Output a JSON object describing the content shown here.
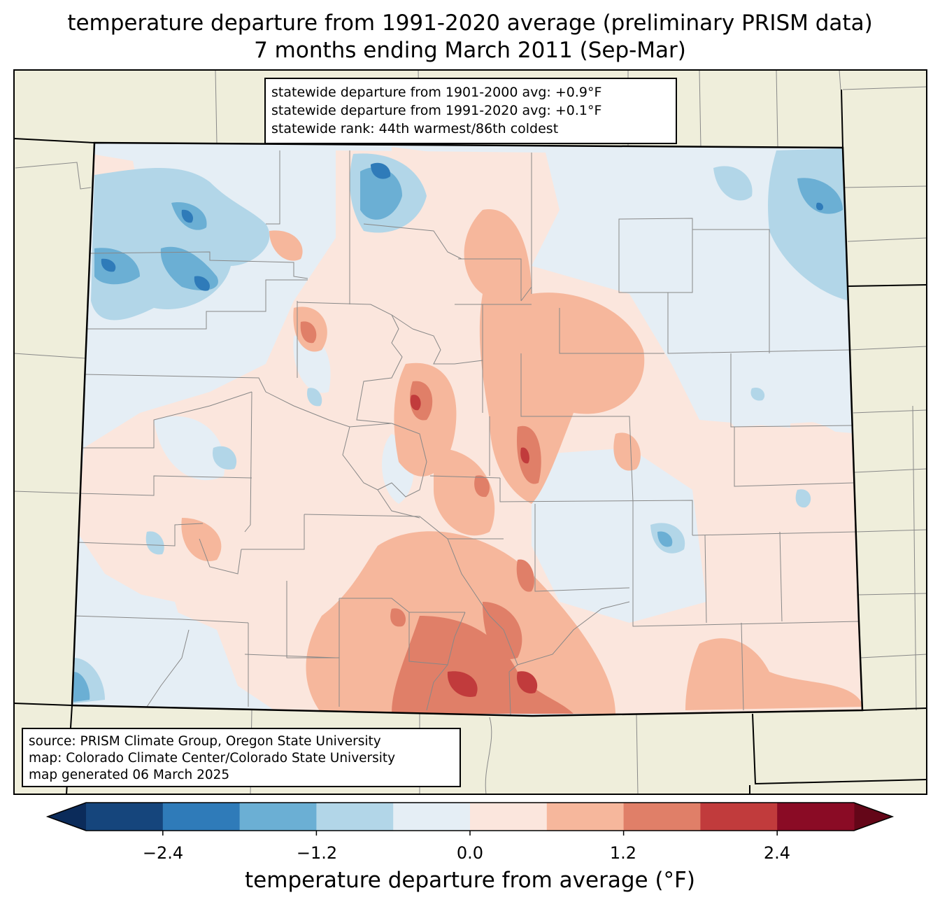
{
  "title": {
    "line1": "temperature departure from 1991-2020 average (preliminary PRISM data)",
    "line2": "7 months ending March 2011 (Sep-Mar)"
  },
  "stats_box": {
    "line1": "statewide departure from 1901-2000 avg: +0.9°F",
    "line2": "statewide departure from 1991-2020 avg: +0.1°F",
    "line3": "statewide rank: 44th warmest/86th coldest"
  },
  "credits_box": {
    "line1": "source: PRISM Climate Group, Oregon State University",
    "line2": "map: Colorado Climate Center/Colorado State University",
    "line3": "map generated 06 March 2025"
  },
  "colorbar": {
    "label": "temperature departure from average (°F)",
    "levels": [
      -3.0,
      -2.4,
      -1.8,
      -1.2,
      -0.6,
      0.0,
      0.6,
      1.2,
      1.8,
      2.4,
      3.0
    ],
    "colors": [
      "#15457c",
      "#2f7bb9",
      "#6bafd4",
      "#b2d6e8",
      "#e5eef5",
      "#fbe6dd",
      "#f6b79c",
      "#e07f68",
      "#c13b3c",
      "#8a0b25"
    ],
    "under_color": "#0b2b5a",
    "over_color": "#640618",
    "ticks": [
      "−2.4",
      "−1.2",
      "0.0",
      "1.2",
      "2.4"
    ]
  },
  "map": {
    "land_color": "#efeedb",
    "state_fill_base": "#e5eef5",
    "boundary_color": "#000000",
    "county_line_color": "#888888"
  }
}
